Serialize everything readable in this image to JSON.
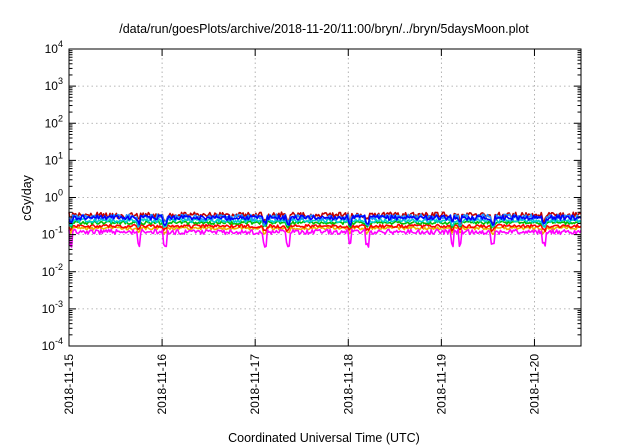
{
  "chart_data": {
    "type": "line",
    "title": "/data/run/goesPlots/archive/2018-11-20/11:00/bryn/../bryn/5daysMoon.plot",
    "xlabel": "Coordinated Universal Time (UTC)",
    "ylabel": "cGy/day",
    "yscale": "log",
    "ylim": [
      0.0001,
      10000
    ],
    "xlim_days": [
      0,
      5.5
    ],
    "x_ticks": [
      {
        "label": "2018-11-15",
        "day": 0
      },
      {
        "label": "2018-11-16",
        "day": 1
      },
      {
        "label": "2018-11-17",
        "day": 2
      },
      {
        "label": "2018-11-18",
        "day": 3
      },
      {
        "label": "2018-11-19",
        "day": 4
      },
      {
        "label": "2018-11-20",
        "day": 5
      }
    ],
    "y_ticks": [
      {
        "base": "10",
        "exp": "-4",
        "value": 0.0001
      },
      {
        "base": "10",
        "exp": "-3",
        "value": 0.001
      },
      {
        "base": "10",
        "exp": "-2",
        "value": 0.01
      },
      {
        "base": "10",
        "exp": "-1",
        "value": 0.1
      },
      {
        "base": "10",
        "exp": "0",
        "value": 1
      },
      {
        "base": "10",
        "exp": "1",
        "value": 10
      },
      {
        "base": "10",
        "exp": "2",
        "value": 100
      },
      {
        "base": "10",
        "exp": "3",
        "value": 1000
      },
      {
        "base": "10",
        "exp": "4",
        "value": 10000
      }
    ],
    "grid": true,
    "series": [
      {
        "color": "#e8b400",
        "level": 0.15,
        "jitter": 0.1,
        "dips": 0.25
      },
      {
        "color": "#ff0000",
        "level": 0.17,
        "jitter": 0.1,
        "dips": 0.2
      },
      {
        "color": "#ff00ff",
        "level": 0.12,
        "jitter": 0.15,
        "dips": 0.55
      },
      {
        "color": "#00c000",
        "level": 0.21,
        "jitter": 0.1,
        "dips": 0.2
      },
      {
        "color": "#00d0d0",
        "level": 0.24,
        "jitter": 0.12,
        "dips": 0.25
      },
      {
        "color": "#c00000",
        "level": 0.34,
        "jitter": 0.18,
        "dips": 0.3
      },
      {
        "color": "#1e90ff",
        "level": 0.3,
        "jitter": 0.18,
        "dips": 0.3
      },
      {
        "color": "#0000ff",
        "level": 0.29,
        "jitter": 0.15,
        "dips": 0.3
      }
    ]
  }
}
